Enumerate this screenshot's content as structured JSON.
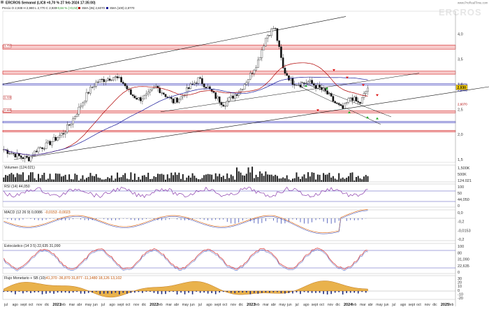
{
  "header": {
    "title": "ERCROS Semanal (LIC8 +0,70 % 27 feb 2024 17:35:00)",
    "indicators_line": "Precio  O 2,938  H 2,980  L 2,770  C 2,930  ",
    "change": "+0,84 %  (+0,02)",
    "sma_a_label": "SMA (35)  2,6070",
    "sma_b_label": "SMA (100)  2,8770",
    "credit": "www.ProRealTime.com",
    "watermark": "ERCROS"
  },
  "price_axis": {
    "ticks": [
      {
        "value": "4,0",
        "num": 4.0
      },
      {
        "value": "3,5",
        "num": 3.5
      },
      {
        "value": "3,0",
        "num": 3.0
      },
      {
        "value": "2,5",
        "num": 2.5
      },
      {
        "value": "2,0",
        "num": 2.0
      },
      {
        "value": "1,5",
        "num": 1.5
      }
    ],
    "current_price": "2,930",
    "badges": [
      {
        "label": "3,0079",
        "num": 3.0079,
        "color": "#1a1a99"
      },
      {
        "label": "2,6070",
        "num": 2.607,
        "color": "#b00000"
      },
      {
        "label": "2,8770",
        "num": 2.877,
        "color": "#1a1a99"
      }
    ],
    "left_labels": [
      {
        "label": "3,750",
        "num": 3.75,
        "color": "#b00000"
      },
      {
        "label": "2,720",
        "num": 2.72,
        "color": "#b00000"
      },
      {
        "label": "2,465",
        "num": 2.465,
        "color": "#b00000"
      }
    ]
  },
  "x_axis": {
    "labels": [
      "jul",
      "ago",
      "sept",
      "oct",
      "nov",
      "dic",
      "2021",
      "feb",
      "mar",
      "abr",
      "may",
      "jun",
      "jul",
      "ago",
      "sept",
      "oct",
      "nov",
      "dic",
      "2022",
      "feb",
      "mar",
      "abr",
      "may",
      "jun",
      "jul",
      "ago",
      "sept",
      "oct",
      "nov",
      "dic",
      "2023",
      "feb",
      "mar",
      "abr",
      "may",
      "jun",
      "jul",
      "ago",
      "sept",
      "oct",
      "nov",
      "dic",
      "2024",
      "feb",
      "mar",
      "abr",
      "may",
      "jun",
      "jul",
      "ago",
      "sept",
      "oct",
      "nov",
      "dic",
      "2025",
      "feb"
    ],
    "bold_labels": [
      "2021",
      "2022",
      "2023",
      "2024",
      "2025"
    ]
  },
  "panels": {
    "volume": {
      "title": "Volumen  (124.021)",
      "ticks": [
        "1,500K",
        "500K",
        "124.021"
      ]
    },
    "rsi": {
      "title": "RSI (14)  44,050",
      "ticks": [
        "100",
        "50",
        "44,050",
        "0"
      ]
    },
    "macd": {
      "title": "MACD (12 26 9)  0,0086",
      "extra": "-0,0153  -0,0023",
      "ticks": [
        "0,0",
        "-0,2",
        "-0,0153",
        "-0,2"
      ]
    },
    "stoch": {
      "title": "Estocástico (14 3 5)  22,635  31,090",
      "ticks": [
        "100",
        "80",
        "31,090",
        "22,635",
        "0"
      ]
    },
    "flow": {
      "title": "Flujo Monetario + SB (10)",
      "extra": "-41,370  -36,870  31,877  -11,1480  18,126  13,102",
      "ticks": [
        "30",
        "20",
        "10",
        "0",
        "-10",
        "-20"
      ]
    }
  },
  "colors": {
    "up_candle": "#ffffff",
    "down_candle": "#111111",
    "sma_fast": "#b00000",
    "sma_slow": "#1a1a99",
    "zone_fill": "#f7c9c9",
    "zone_edge": "#cc0000",
    "blue_line": "#2222aa",
    "arrow_up": "#22aa22",
    "arrow_down": "#dd1111",
    "flow_fill": "#e9b24c",
    "flow_neg": "#1f2a7a"
  },
  "chart_data": {
    "type": "line",
    "weekly_close_anchors": [
      {
        "date": "2020-07",
        "close": 1.7
      },
      {
        "date": "2020-08",
        "close": 1.62
      },
      {
        "date": "2020-09",
        "close": 1.55
      },
      {
        "date": "2020-10",
        "close": 1.52
      },
      {
        "date": "2020-11",
        "close": 1.72
      },
      {
        "date": "2020-12",
        "close": 1.78
      },
      {
        "date": "2021-01",
        "close": 1.9
      },
      {
        "date": "2021-02",
        "close": 2.02
      },
      {
        "date": "2021-03",
        "close": 2.25
      },
      {
        "date": "2021-04",
        "close": 2.55
      },
      {
        "date": "2021-05",
        "close": 2.85
      },
      {
        "date": "2021-06",
        "close": 3.05
      },
      {
        "date": "2021-07",
        "close": 3.1
      },
      {
        "date": "2021-08",
        "close": 3.15
      },
      {
        "date": "2021-09",
        "close": 3.05
      },
      {
        "date": "2021-10",
        "close": 2.8
      },
      {
        "date": "2021-11",
        "close": 2.7
      },
      {
        "date": "2021-12",
        "close": 2.78
      },
      {
        "date": "2022-01",
        "close": 2.95
      },
      {
        "date": "2022-02",
        "close": 2.8
      },
      {
        "date": "2022-03",
        "close": 2.65
      },
      {
        "date": "2022-04",
        "close": 2.75
      },
      {
        "date": "2022-05",
        "close": 2.95
      },
      {
        "date": "2022-06",
        "close": 3.1
      },
      {
        "date": "2022-07",
        "close": 2.95
      },
      {
        "date": "2022-08",
        "close": 2.75
      },
      {
        "date": "2022-09",
        "close": 2.6
      },
      {
        "date": "2022-10",
        "close": 2.75
      },
      {
        "date": "2022-11",
        "close": 2.9
      },
      {
        "date": "2022-12",
        "close": 3.15
      },
      {
        "date": "2023-01",
        "close": 3.45
      },
      {
        "date": "2023-02",
        "close": 3.95
      },
      {
        "date": "2023-03",
        "close": 4.15
      },
      {
        "date": "2023-04",
        "close": 3.3
      },
      {
        "date": "2023-05",
        "close": 3.05
      },
      {
        "date": "2023-06",
        "close": 3.0
      },
      {
        "date": "2023-07",
        "close": 3.05
      },
      {
        "date": "2023-08",
        "close": 2.95
      },
      {
        "date": "2023-09",
        "close": 2.85
      },
      {
        "date": "2023-10",
        "close": 2.65
      },
      {
        "date": "2023-11",
        "close": 2.5
      },
      {
        "date": "2023-12",
        "close": 2.75
      },
      {
        "date": "2024-01",
        "close": 2.6
      },
      {
        "date": "2024-02",
        "close": 2.93
      }
    ],
    "horizontal_zones": [
      {
        "lo": 3.7,
        "hi": 3.78,
        "color": "#f7c9c9"
      },
      {
        "lo": 3.2,
        "hi": 3.26,
        "color": "#f7c9c9"
      },
      {
        "lo": 2.98,
        "hi": 3.01,
        "color": "#dcdcf7"
      },
      {
        "lo": 2.43,
        "hi": 2.47,
        "color": "#f7c9c9"
      },
      {
        "lo": 2.23,
        "hi": 2.26,
        "color": "#dcdcf7"
      },
      {
        "lo": 2.05,
        "hi": 2.08,
        "color": "#f7c9c9"
      }
    ],
    "ylim": [
      1.5,
      4.4
    ]
  }
}
